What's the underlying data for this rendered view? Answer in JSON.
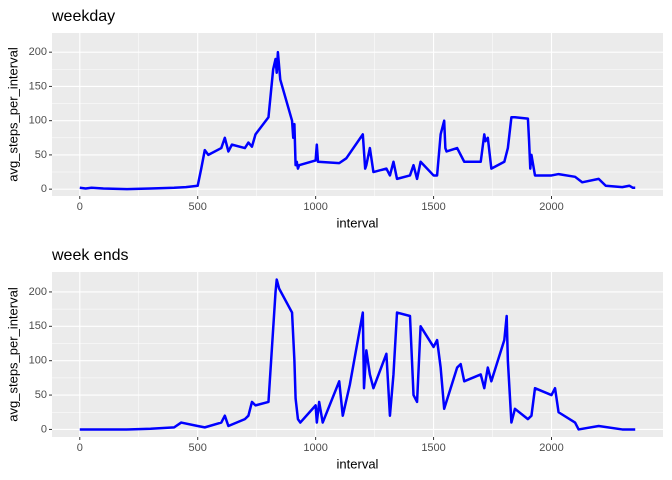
{
  "chart_data": [
    {
      "type": "line",
      "title": "weekday",
      "x_label": "interval",
      "y_label": "avg_steps_per_interval",
      "color": "#0000FF",
      "x": [
        0,
        25,
        50,
        100,
        200,
        300,
        400,
        450,
        500,
        515,
        530,
        545,
        600,
        615,
        630,
        645,
        700,
        715,
        730,
        745,
        800,
        810,
        820,
        830,
        835,
        840,
        845,
        850,
        900,
        905,
        910,
        915,
        920,
        925,
        930,
        1000,
        1005,
        1010,
        1100,
        1130,
        1200,
        1205,
        1210,
        1215,
        1230,
        1245,
        1300,
        1315,
        1330,
        1345,
        1400,
        1415,
        1430,
        1445,
        1500,
        1515,
        1530,
        1545,
        1550,
        1555,
        1600,
        1630,
        1700,
        1715,
        1720,
        1730,
        1745,
        1800,
        1815,
        1830,
        1845,
        1900,
        1905,
        1910,
        1915,
        1930,
        2000,
        2030,
        2100,
        2130,
        2200,
        2230,
        2300,
        2330,
        2345,
        2355
      ],
      "values": [
        2,
        1,
        2,
        1,
        0,
        1,
        2,
        3,
        5,
        30,
        57,
        50,
        60,
        75,
        55,
        65,
        60,
        68,
        62,
        80,
        105,
        140,
        175,
        190,
        170,
        200,
        180,
        160,
        100,
        75,
        95,
        35,
        40,
        30,
        35,
        42,
        65,
        40,
        38,
        45,
        80,
        55,
        30,
        35,
        60,
        25,
        30,
        20,
        40,
        15,
        20,
        35,
        15,
        40,
        20,
        20,
        80,
        100,
        60,
        55,
        60,
        40,
        40,
        80,
        70,
        75,
        30,
        40,
        60,
        105,
        105,
        103,
        70,
        30,
        50,
        20,
        20,
        22,
        18,
        10,
        15,
        5,
        3,
        5,
        2,
        2
      ],
      "xlim": [
        -117.75,
        2472.75
      ],
      "ylim": [
        -10,
        228
      ],
      "xticks": [
        0,
        500,
        1000,
        1500,
        2000
      ],
      "yticks": [
        0,
        50,
        100,
        150,
        200
      ]
    },
    {
      "type": "line",
      "title": "week ends",
      "x_label": "interval",
      "y_label": "avg_steps_per_interval",
      "color": "#0000FF",
      "x": [
        0,
        100,
        200,
        300,
        400,
        430,
        500,
        530,
        600,
        615,
        630,
        700,
        715,
        730,
        745,
        800,
        815,
        830,
        835,
        845,
        900,
        910,
        915,
        925,
        935,
        1000,
        1005,
        1015,
        1030,
        1100,
        1115,
        1145,
        1200,
        1205,
        1215,
        1230,
        1245,
        1300,
        1315,
        1330,
        1345,
        1400,
        1415,
        1430,
        1445,
        1500,
        1515,
        1530,
        1545,
        1600,
        1615,
        1630,
        1700,
        1715,
        1730,
        1745,
        1800,
        1810,
        1815,
        1830,
        1845,
        1900,
        1915,
        1930,
        2000,
        2015,
        2030,
        2100,
        2115,
        2200,
        2300,
        2355
      ],
      "values": [
        0,
        0,
        0,
        1,
        3,
        10,
        5,
        3,
        10,
        20,
        5,
        15,
        20,
        40,
        35,
        40,
        120,
        200,
        218,
        205,
        170,
        100,
        45,
        15,
        10,
        35,
        10,
        40,
        10,
        70,
        20,
        65,
        170,
        60,
        115,
        80,
        60,
        110,
        20,
        80,
        170,
        165,
        50,
        40,
        150,
        120,
        130,
        90,
        30,
        90,
        95,
        70,
        80,
        60,
        90,
        70,
        130,
        165,
        100,
        10,
        30,
        15,
        20,
        60,
        50,
        60,
        25,
        10,
        0,
        5,
        0,
        0
      ],
      "xlim": [
        -117.75,
        2472.75
      ],
      "ylim": [
        -11,
        229
      ],
      "xticks": [
        0,
        500,
        1000,
        1500,
        2000
      ],
      "yticks": [
        0,
        50,
        100,
        150,
        200
      ]
    }
  ]
}
